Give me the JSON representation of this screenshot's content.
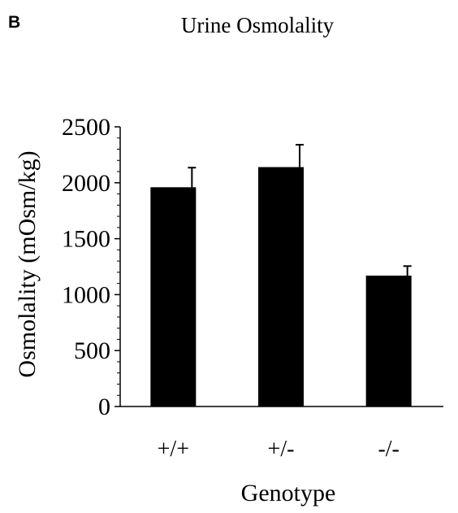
{
  "panel_label": "B",
  "chart_data": {
    "type": "bar",
    "title": "Urine Osmolality",
    "xlabel": "Genotype",
    "ylabel": "Osmolality (mOsm/kg)",
    "categories": [
      "+/+",
      "+/-",
      "-/-"
    ],
    "values": [
      1960,
      2140,
      1170
    ],
    "errors": [
      175,
      200,
      85
    ],
    "ylim": [
      0,
      2500
    ],
    "yticks": [
      0,
      500,
      1000,
      1500,
      2000,
      2500
    ],
    "ytick_labels": [
      "0",
      "500",
      "1000",
      "1500",
      "2000",
      "2500"
    ],
    "bar_color": "#000000",
    "grid": false
  }
}
